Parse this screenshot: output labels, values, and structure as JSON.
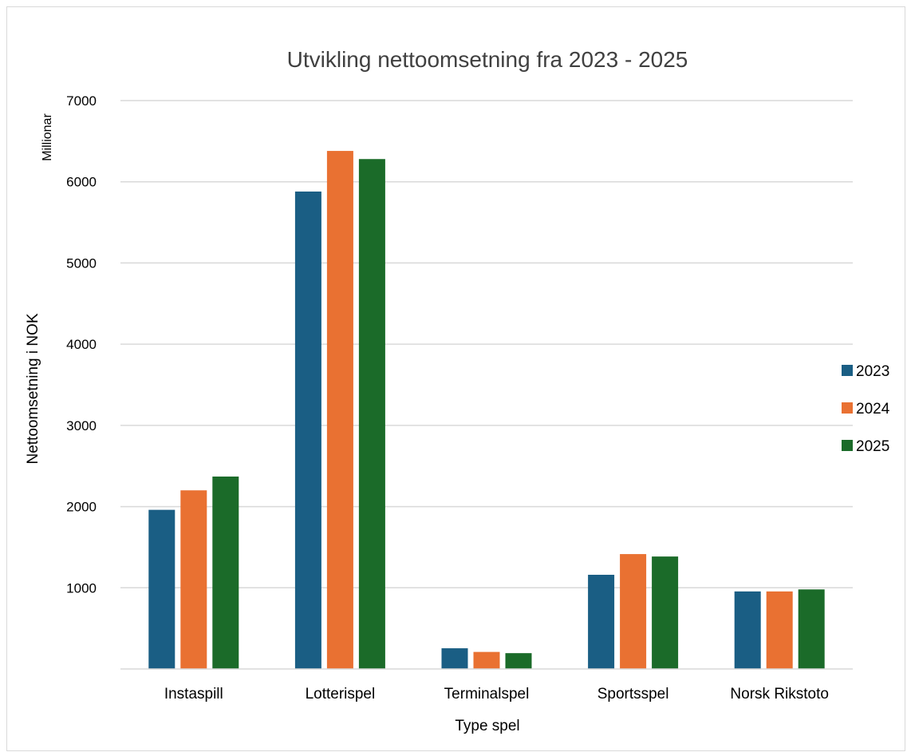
{
  "chart_data": {
    "type": "bar",
    "title": "Utvikling nettoomsetning fra 2023 - 2025",
    "xlabel": "Type spel",
    "ylabel": "Nettoomsetning i NOK",
    "yunit": "Millionar",
    "ylim": [
      0,
      7000
    ],
    "yticks": [
      1000,
      2000,
      3000,
      4000,
      5000,
      6000,
      7000
    ],
    "grid": true,
    "legend_position": "right",
    "categories": [
      "Instaspill",
      "Lotterispel",
      "Terminalspel",
      "Sportsspel",
      "Norsk Rikstoto"
    ],
    "series": [
      {
        "name": "2023",
        "color": "#1a5e84",
        "values": [
          1960,
          5880,
          255,
          1160,
          955
        ]
      },
      {
        "name": "2024",
        "color": "#e97132",
        "values": [
          2200,
          6380,
          210,
          1415,
          955
        ]
      },
      {
        "name": "2025",
        "color": "#1b6b29",
        "values": [
          2370,
          6280,
          195,
          1385,
          980
        ]
      }
    ]
  }
}
